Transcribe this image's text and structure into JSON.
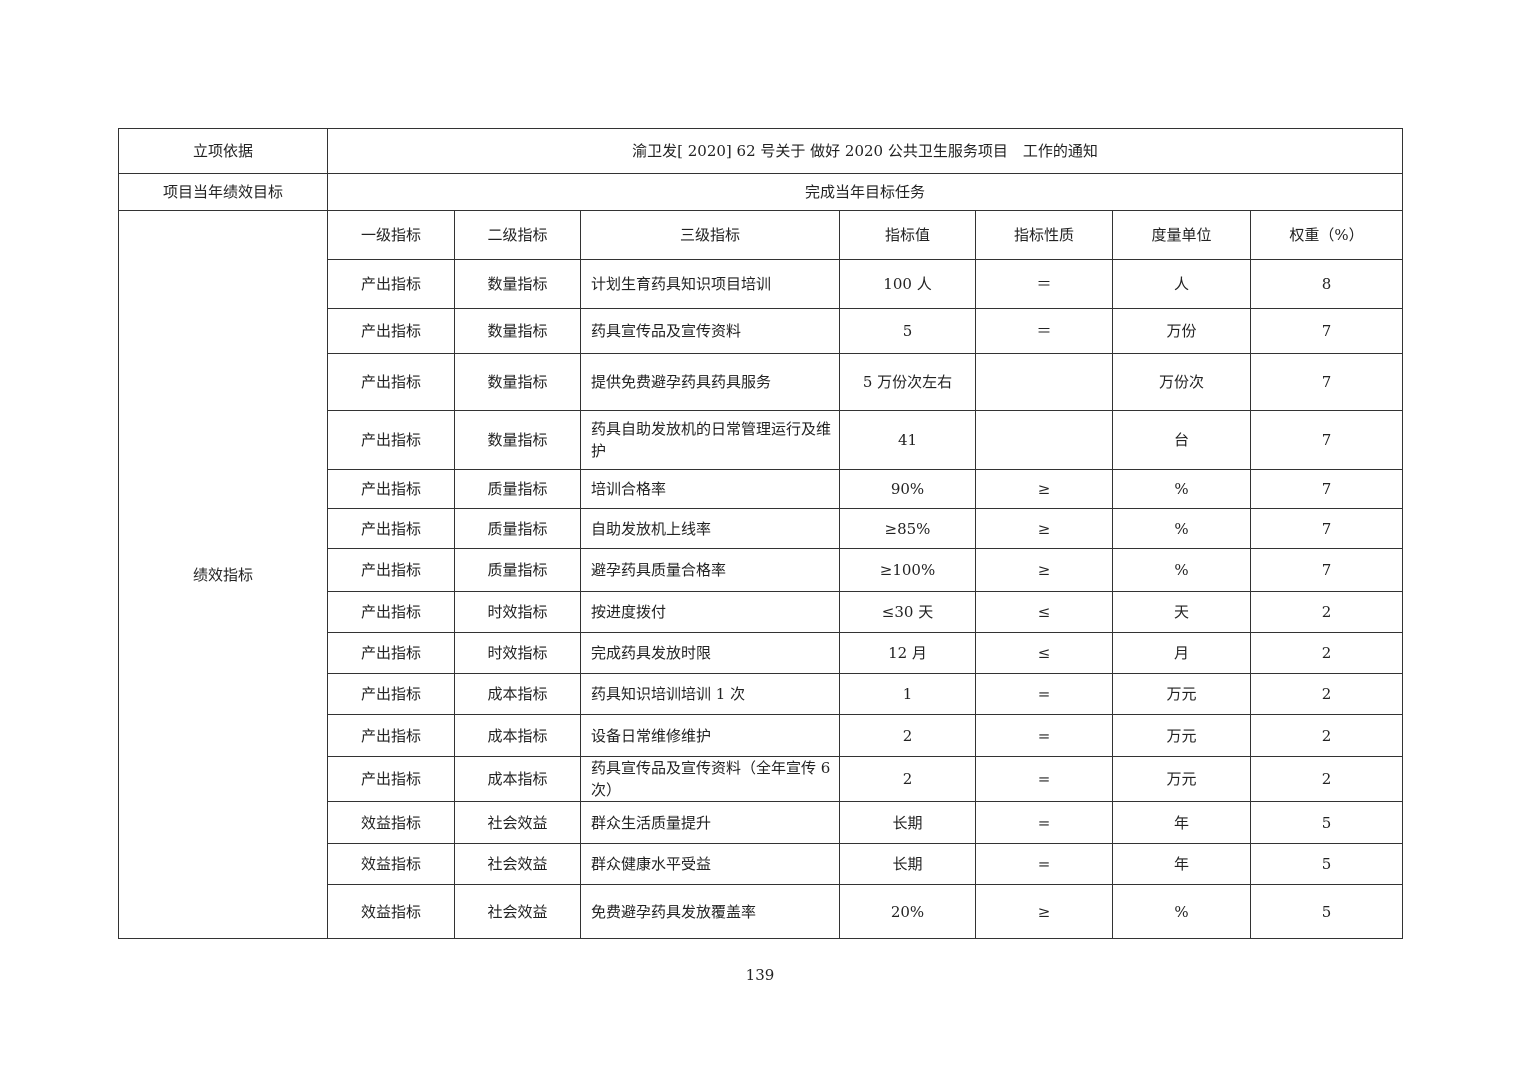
{
  "basis": {
    "label": "立项依据",
    "value": "渝卫发[ 2020] 62 号关于 做好 2020 公共卫生服务项目　工作的通知"
  },
  "goal": {
    "label": "项目当年绩效目标",
    "value": "完成当年目标任务"
  },
  "indicators": {
    "label": "绩效指标",
    "headers": [
      "一级指标",
      "二级指标",
      "三级指标",
      "指标值",
      "指标性质",
      "度量单位",
      "权重（%）"
    ],
    "rows": [
      [
        "产出指标",
        "数量指标",
        "计划生育药具知识项目培训",
        "100 人",
        "＝",
        "人",
        "8"
      ],
      [
        "产出指标",
        "数量指标",
        "药具宣传品及宣传资料",
        "5",
        "＝",
        "万份",
        "7"
      ],
      [
        "产出指标",
        "数量指标",
        "提供免费避孕药具药具服务",
        "5 万份次左右",
        "",
        "万份次",
        "7"
      ],
      [
        "产出指标",
        "数量指标",
        "药具自助发放机的日常管理运行及维护",
        "41",
        "",
        "台",
        "7"
      ],
      [
        "产出指标",
        "质量指标",
        "培训合格率",
        "90%",
        "≥",
        "%",
        "7"
      ],
      [
        "产出指标",
        "质量指标",
        "自助发放机上线率",
        "≥85%",
        "≥",
        "%",
        "7"
      ],
      [
        "产出指标",
        "质量指标",
        "避孕药具质量合格率",
        "≥100%",
        "≥",
        "%",
        "7"
      ],
      [
        "产出指标",
        "时效指标",
        "按进度拨付",
        "≤30 天",
        "≤",
        "天",
        "2"
      ],
      [
        "产出指标",
        "时效指标",
        "完成药具发放时限",
        "12 月",
        "≤",
        "月",
        "2"
      ],
      [
        "产出指标",
        "成本指标",
        "药具知识培训培训 1 次",
        "1",
        "=",
        "万元",
        "2"
      ],
      [
        "产出指标",
        "成本指标",
        "设备日常维修维护",
        "2",
        "=",
        "万元",
        "2"
      ],
      [
        "产出指标",
        "成本指标",
        "药具宣传品及宣传资料（全年宣传 6 次）",
        "2",
        "=",
        "万元",
        "2"
      ],
      [
        "效益指标",
        "社会效益",
        "群众生活质量提升",
        "长期",
        "=",
        "年",
        "5"
      ],
      [
        "效益指标",
        "社会效益",
        "群众健康水平受益",
        "长期",
        "=",
        "年",
        "5"
      ],
      [
        "效益指标",
        "社会效益",
        "免费避孕药具发放覆盖率",
        "20%",
        "≥",
        "%",
        "5"
      ]
    ]
  },
  "page_number": "139"
}
